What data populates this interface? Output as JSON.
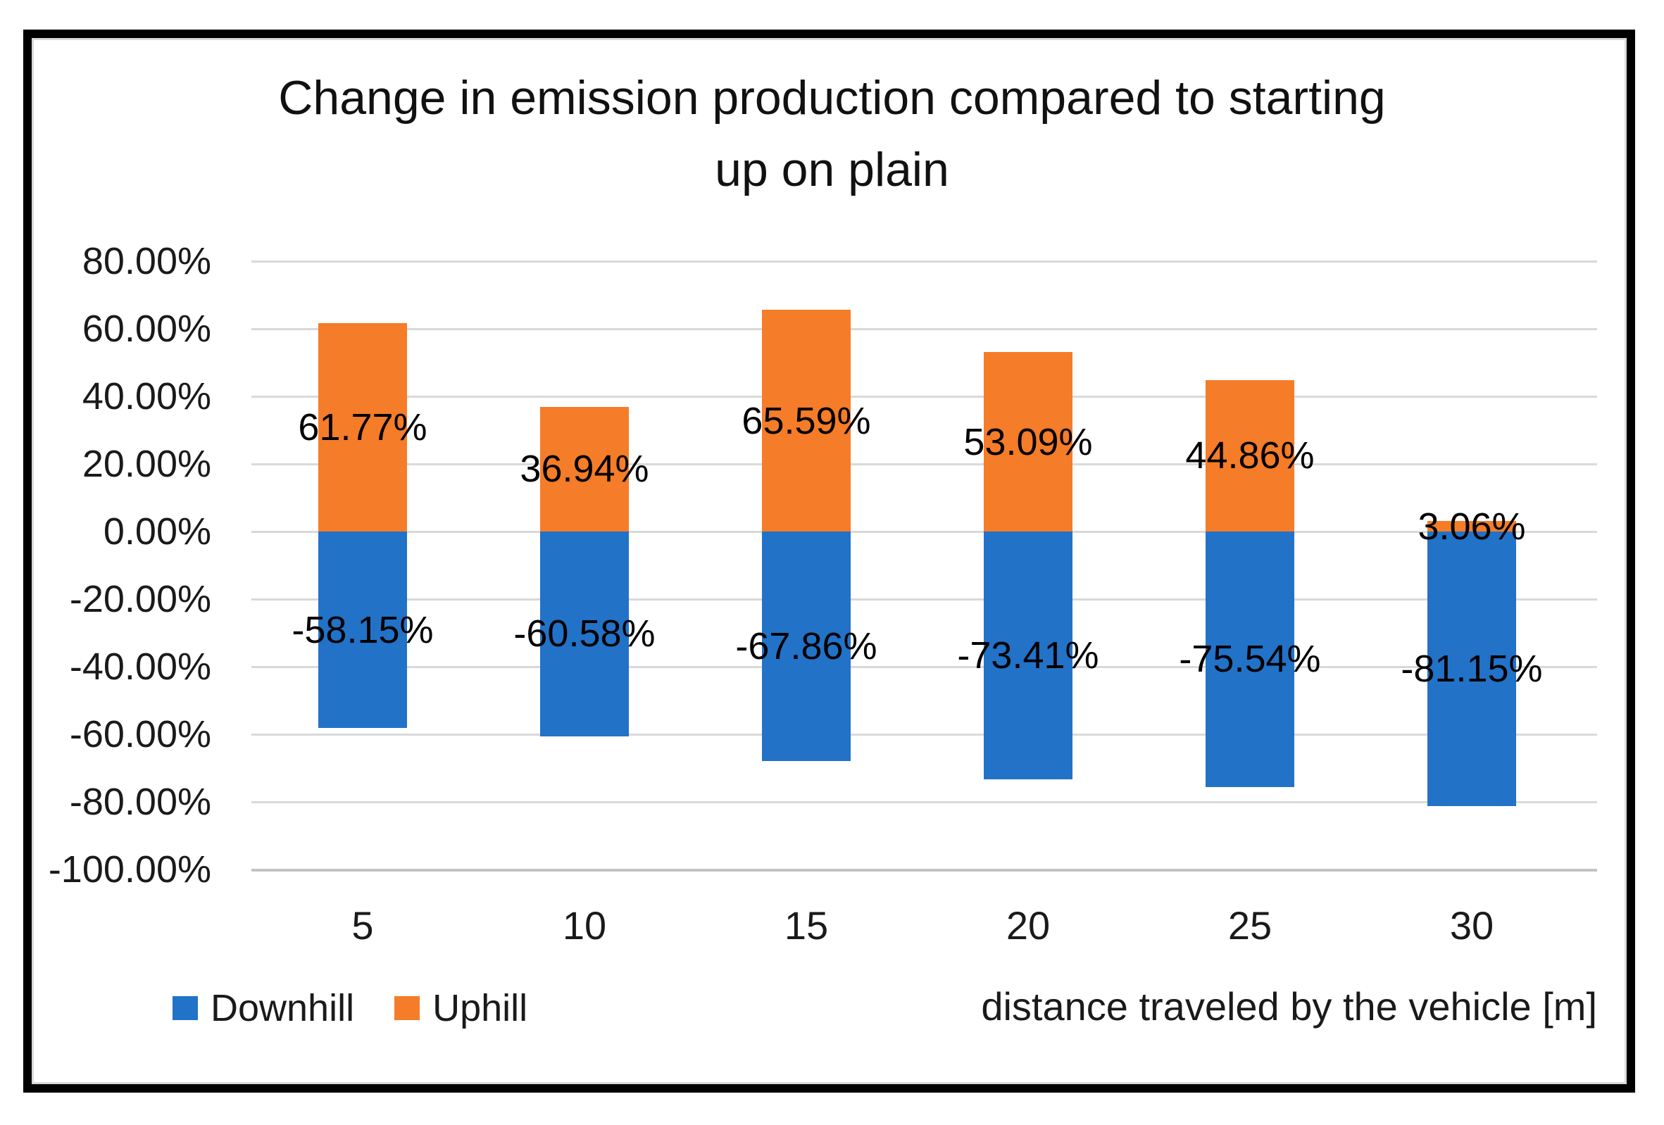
{
  "figure": {
    "title_lines": [
      "Change in emission production compared to starting",
      "up on plain"
    ],
    "x_axis_title": "distance traveled by the vehicle [m]"
  },
  "legend": {
    "items": [
      {
        "label": "Downhill",
        "color": "#2272c8"
      },
      {
        "label": "Uphill",
        "color": "#f57c28"
      }
    ]
  },
  "chart_data": {
    "type": "bar",
    "stacked": true,
    "title": "Change in emission production compared to starting up on plain",
    "xlabel": "distance traveled by the vehicle [m]",
    "ylabel": "",
    "categories": [
      "5",
      "10",
      "15",
      "20",
      "25",
      "30"
    ],
    "series": [
      {
        "name": "Downhill",
        "color": "#2272c8",
        "values": [
          -58.15,
          -60.58,
          -67.86,
          -73.41,
          -75.54,
          -81.15
        ],
        "labels": [
          "-58.15%",
          "-60.58%",
          "-67.86%",
          "-73.41%",
          "-75.54%",
          "-81.15%"
        ]
      },
      {
        "name": "Uphill",
        "color": "#f57c28",
        "values": [
          61.77,
          36.94,
          65.59,
          53.09,
          44.86,
          3.06
        ],
        "labels": [
          "61.77%",
          "36.94%",
          "65.59%",
          "53.09%",
          "44.86%",
          "3.06%"
        ]
      }
    ],
    "y_ticks": [
      {
        "value": 80,
        "label": "80.00%"
      },
      {
        "value": 60,
        "label": "60.00%"
      },
      {
        "value": 40,
        "label": "40.00%"
      },
      {
        "value": 20,
        "label": "20.00%"
      },
      {
        "value": 0,
        "label": "0.00%"
      },
      {
        "value": -20,
        "label": "-20.00%"
      },
      {
        "value": -40,
        "label": "-40.00%"
      },
      {
        "value": -60,
        "label": "-60.00%"
      },
      {
        "value": -80,
        "label": "-80.00%"
      },
      {
        "value": -100,
        "label": "-100.00%"
      }
    ],
    "ylim": [
      -100,
      80
    ],
    "grid": true,
    "legend_position": "bottom-left",
    "data_labels": "center"
  }
}
